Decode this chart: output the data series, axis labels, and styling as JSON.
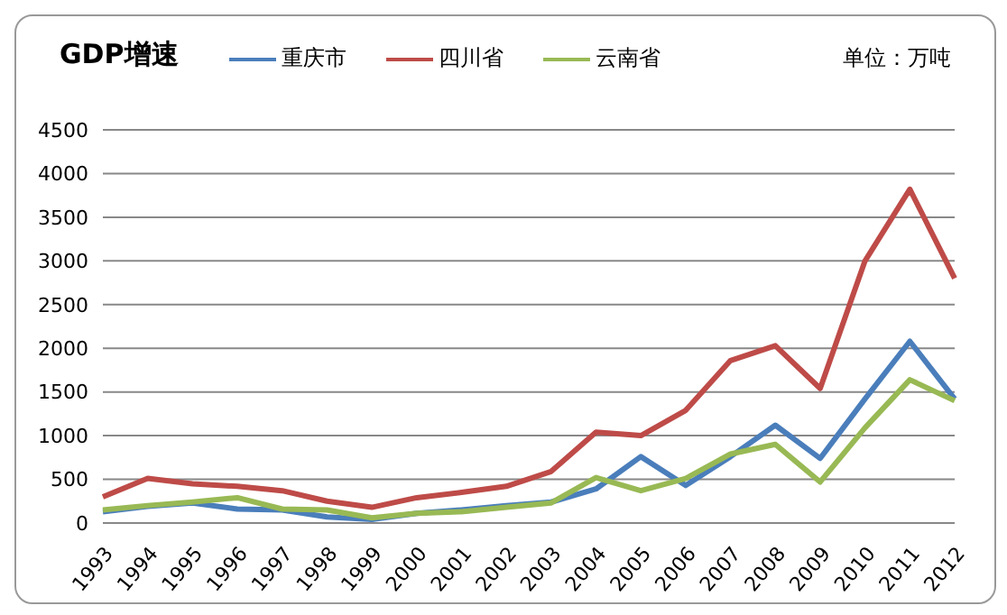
{
  "chart_data": {
    "type": "line",
    "title": "GDP增速",
    "annotations": [
      "单位：万吨"
    ],
    "categories": [
      "1993",
      "1994",
      "1995",
      "1996",
      "1997",
      "1998",
      "1999",
      "2000",
      "2001",
      "2002",
      "2003",
      "2004",
      "2005",
      "2006",
      "2007",
      "2008",
      "2009",
      "2010",
      "2011",
      "2012"
    ],
    "series": [
      {
        "name": "重庆市",
        "color": "#4a7ebb",
        "values": [
          130,
          190,
          230,
          160,
          150,
          70,
          40,
          110,
          150,
          200,
          240,
          390,
          760,
          430,
          760,
          1120,
          740,
          1420,
          2080,
          1420
        ]
      },
      {
        "name": "四川省",
        "color": "#be4b48",
        "values": [
          300,
          510,
          450,
          420,
          370,
          250,
          180,
          290,
          350,
          420,
          590,
          1040,
          1000,
          1290,
          1860,
          2030,
          1540,
          3000,
          3820,
          2800
        ]
      },
      {
        "name": "云南省",
        "color": "#98b954",
        "values": [
          150,
          200,
          240,
          290,
          160,
          150,
          60,
          110,
          130,
          180,
          230,
          520,
          370,
          510,
          790,
          900,
          470,
          1090,
          1640,
          1400
        ]
      }
    ],
    "ylim": [
      0,
      4500
    ],
    "yticks": [
      0,
      500,
      1000,
      1500,
      2000,
      2500,
      3000,
      3500,
      4000,
      4500
    ],
    "grid": "y",
    "legend": "top",
    "marker": "none",
    "line_style": "solid"
  }
}
